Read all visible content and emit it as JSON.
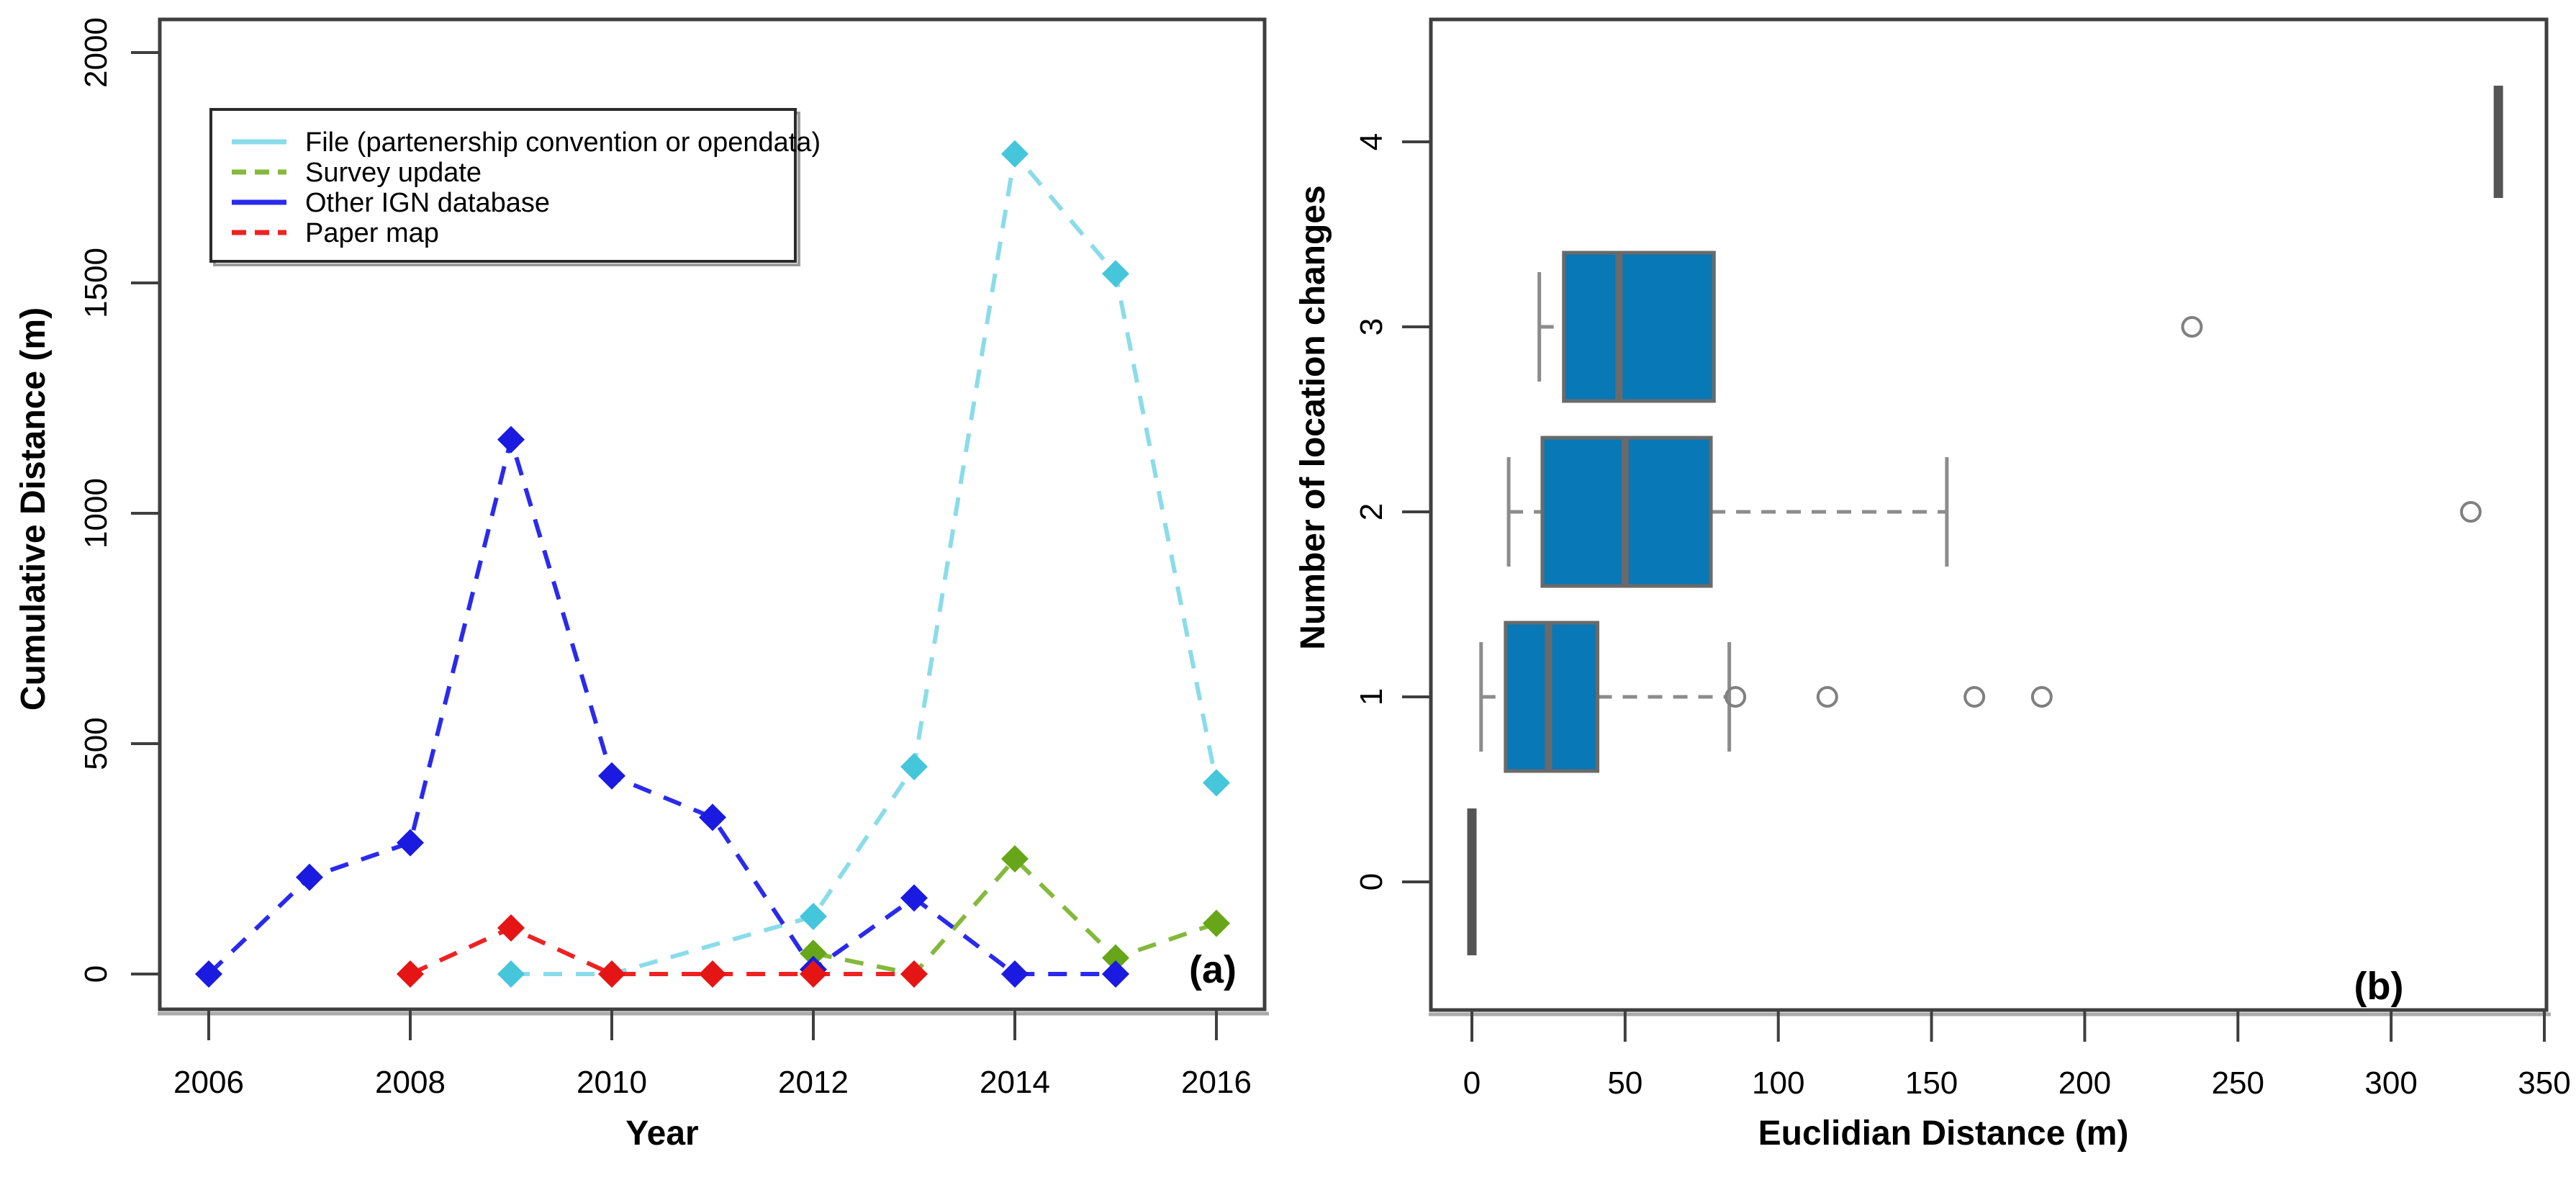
{
  "figure": {
    "panel_a_label": "(a)",
    "panel_b_label": "(b)"
  },
  "chart_data": [
    {
      "type": "line",
      "panel": "a",
      "xlabel": "Year",
      "ylabel": "Cumulative Distance (m)",
      "xticks": [
        2006,
        2008,
        2010,
        2012,
        2014,
        2016
      ],
      "yticks": [
        0,
        500,
        1000,
        1500,
        2000
      ],
      "xlim": [
        2005.5,
        2016.5
      ],
      "ylim": [
        0,
        2000
      ],
      "grid": false,
      "legend_position": "top-left",
      "series": [
        {
          "name": "File (partenership convention or opendata)",
          "line_color": "#8adce9",
          "marker_color": "#45c6db",
          "plot_dashed": true,
          "legend_dashed": false,
          "points": [
            [
              2009,
              0
            ],
            [
              2010,
              0
            ],
            [
              2012,
              125
            ],
            [
              2013,
              450
            ],
            [
              2014,
              1780
            ],
            [
              2015,
              1520
            ],
            [
              2016,
              415
            ]
          ]
        },
        {
          "name": "Survey update",
          "line_color": "#84b93c",
          "marker_color": "#66a618",
          "plot_dashed": true,
          "legend_dashed": true,
          "points": [
            [
              2012,
              45
            ],
            [
              2013,
              0
            ],
            [
              2014,
              250
            ],
            [
              2015,
              35
            ],
            [
              2016,
              110
            ]
          ]
        },
        {
          "name": "Other IGN database",
          "line_color": "#2a2aee",
          "marker_color": "#1a1ae0",
          "plot_dashed": true,
          "legend_dashed": false,
          "points": [
            [
              2006,
              0
            ],
            [
              2007,
              210
            ],
            [
              2008,
              285
            ],
            [
              2009,
              1160
            ],
            [
              2010,
              430
            ],
            [
              2011,
              340
            ],
            [
              2012,
              10
            ],
            [
              2013,
              165
            ],
            [
              2014,
              0
            ],
            [
              2015,
              0
            ]
          ]
        },
        {
          "name": "Paper map",
          "line_color": "#ee2222",
          "marker_color": "#e61515",
          "plot_dashed": true,
          "legend_dashed": true,
          "points": [
            [
              2008,
              0
            ],
            [
              2009,
              100
            ],
            [
              2010,
              0
            ],
            [
              2011,
              0
            ],
            [
              2012,
              0
            ],
            [
              2013,
              0
            ]
          ]
        }
      ]
    },
    {
      "type": "boxplot-horizontal",
      "panel": "b",
      "xlabel": "Euclidian Distance (m)",
      "ylabel": "Number of location changes",
      "xticks": [
        0,
        50,
        100,
        150,
        200,
        250,
        300,
        350
      ],
      "yticks": [
        0,
        1,
        2,
        3,
        4
      ],
      "xlim": [
        0,
        350
      ],
      "grid": false,
      "box_fill": "#0878b6",
      "box_stroke": "#6a6a6a",
      "whisker_color": "#8c8c8c",
      "outlier_color": "#808080",
      "single_value_color": "#555555",
      "rows": [
        {
          "category": 0,
          "single_value": 0
        },
        {
          "category": 1,
          "whisker_low": 3,
          "q1": 11,
          "median": 25,
          "q3": 41,
          "whisker_high": 84,
          "outliers": [
            86,
            116,
            164,
            186
          ]
        },
        {
          "category": 2,
          "whisker_low": 12,
          "q1": 23,
          "median": 50,
          "q3": 78,
          "whisker_high": 155,
          "outliers": [
            326
          ]
        },
        {
          "category": 3,
          "whisker_low": 22,
          "q1": 30,
          "median": 48,
          "q3": 79,
          "whisker_high": null,
          "outliers": [
            235
          ]
        },
        {
          "category": 4,
          "single_value": 335
        }
      ]
    }
  ]
}
